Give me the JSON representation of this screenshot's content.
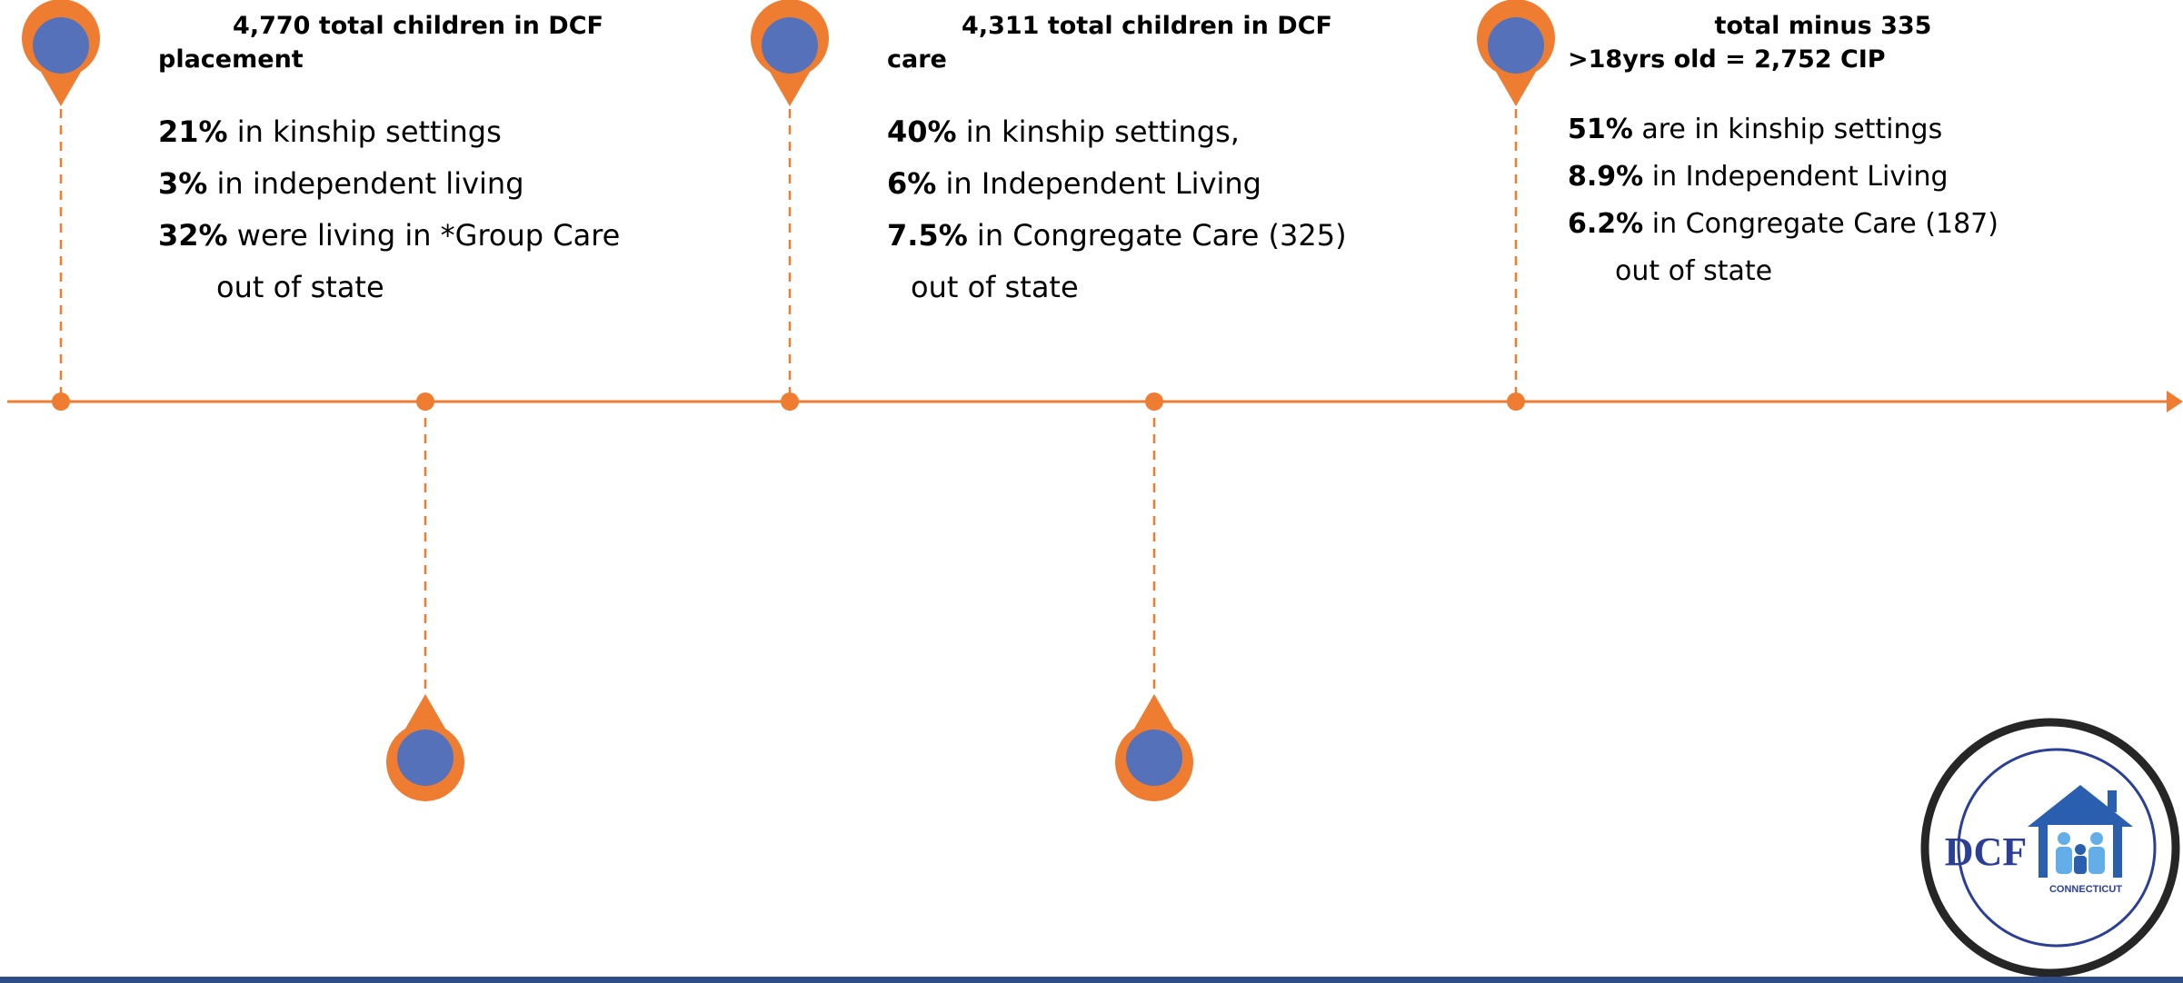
{
  "colors": {
    "accent_orange": "#ee7d31",
    "pin_blue": "#5471b9",
    "logo_blue": "#2a3f95",
    "bar_blue": "#2f4d86"
  },
  "milestones": [
    {
      "heading_line1": "4,770 total children in DCF",
      "heading_line2": "placement",
      "stats": [
        {
          "bold": "21%",
          "text": " in kinship settings"
        },
        {
          "bold": "3%",
          "text": " in independent living"
        },
        {
          "bold": "32%",
          "text": " were living in *Group Care"
        },
        {
          "bold": "",
          "text": "out of state"
        }
      ]
    },
    {
      "heading_line1": "4,311 total children in DCF",
      "heading_line2": "care",
      "stats": [
        {
          "bold": "40%",
          "text": " in kinship settings,"
        },
        {
          "bold": "6%",
          "text": " in Independent Living"
        },
        {
          "bold": "7.5%",
          "text": " in Congregate Care (325)"
        },
        {
          "bold": "",
          "text": "out of state"
        }
      ]
    },
    {
      "heading_line1": "total minus 335",
      "heading_line2": ">18yrs old = 2,752 CIP",
      "stats": [
        {
          "bold": "51%",
          "text": " are in kinship settings"
        },
        {
          "bold": "8.9%",
          "text": " in Independent Living"
        },
        {
          "bold": "6.2%",
          "text": " in Congregate Care (187)"
        },
        {
          "bold": "",
          "text": "out of state"
        }
      ]
    }
  ],
  "logo": {
    "wordmark": "DCF",
    "subtitle": "CONNECTICUT",
    "icon": "house-family-icon"
  }
}
